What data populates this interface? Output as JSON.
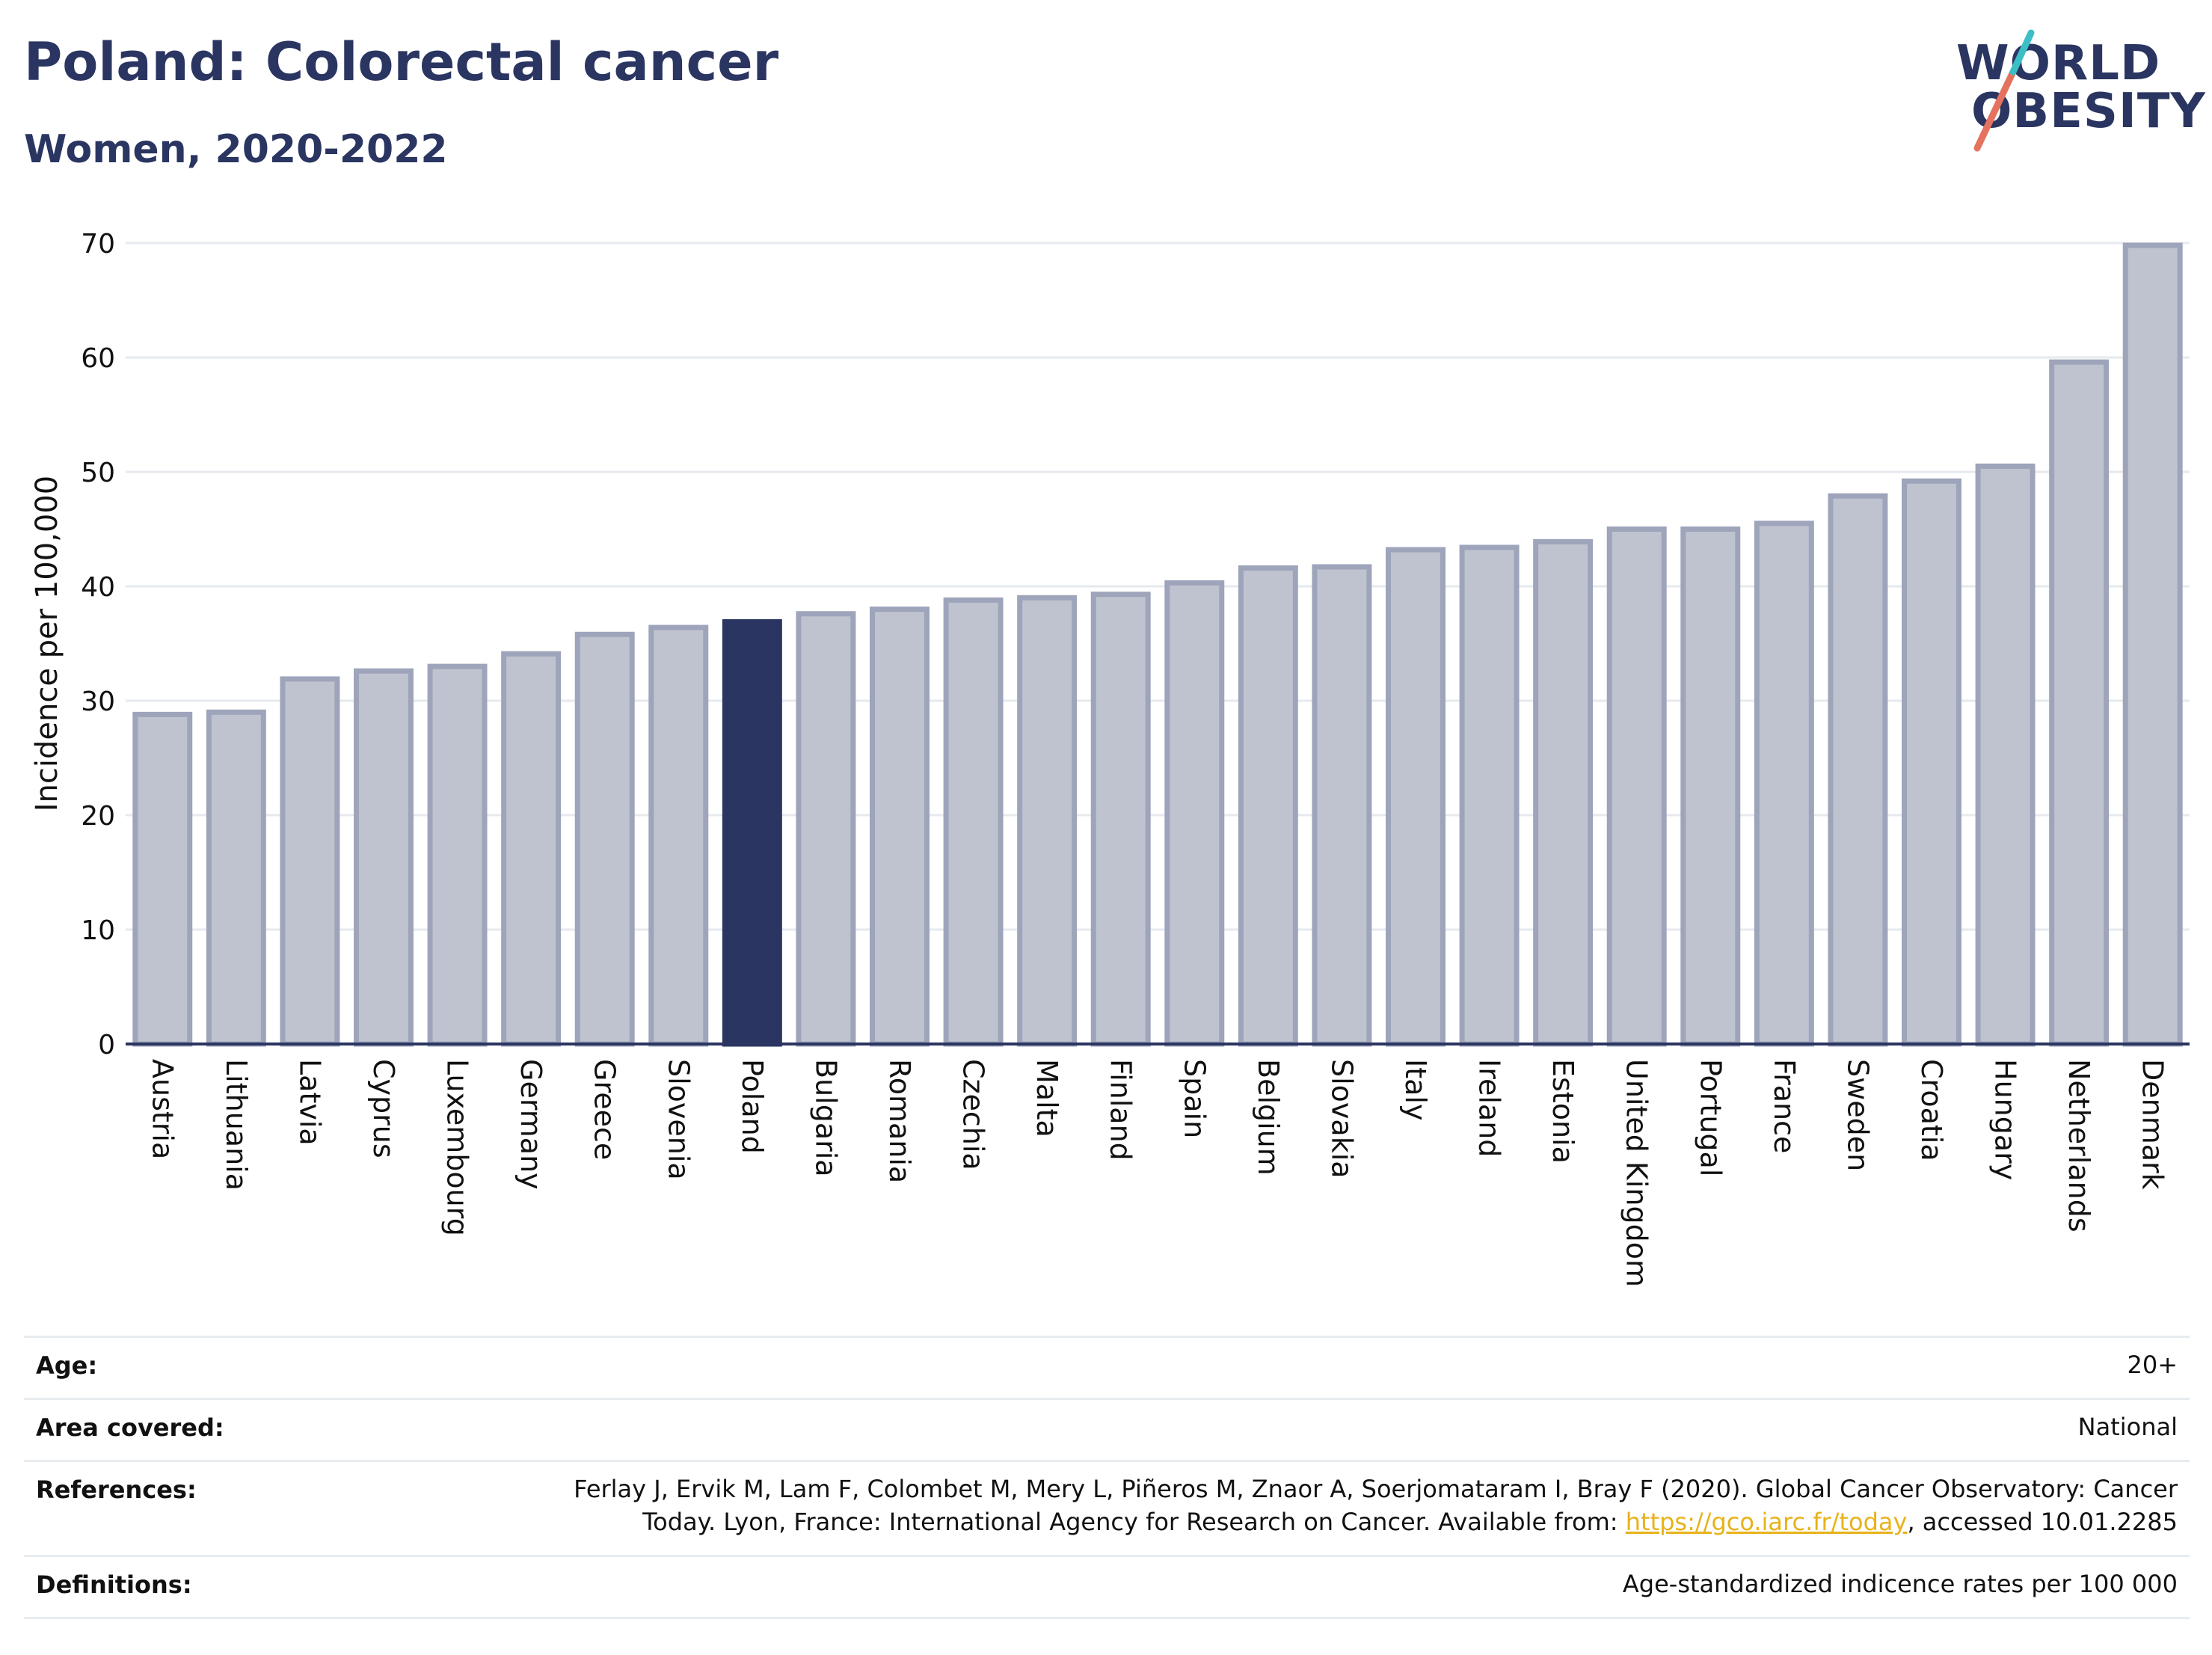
{
  "header": {
    "title": "Poland: Colorectal cancer",
    "subtitle": "Women, 2020-2022"
  },
  "logo": {
    "line1": "WORLD",
    "line2": "OBESITY"
  },
  "chart_data": {
    "type": "bar",
    "ylabel": "Incidence per 100,000",
    "xlabel": "",
    "ylim": [
      0,
      70
    ],
    "yticks": [
      0,
      10,
      20,
      30,
      40,
      50,
      60,
      70
    ],
    "grid": true,
    "highlight": "Poland",
    "colors": {
      "bar": "#bfc3d0",
      "bar_edge": "#9ea4ba",
      "highlight": "#2a3561",
      "axis": "#2a3561",
      "grid": "#e6e9ee"
    },
    "categories": [
      "Austria",
      "Lithuania",
      "Latvia",
      "Cyprus",
      "Luxembourg",
      "Germany",
      "Greece",
      "Slovenia",
      "Poland",
      "Bulgaria",
      "Romania",
      "Czechia",
      "Malta",
      "Finland",
      "Spain",
      "Belgium",
      "Slovakia",
      "Italy",
      "Ireland",
      "Estonia",
      "United Kingdom",
      "Portugal",
      "France",
      "Sweden",
      "Croatia",
      "Hungary",
      "Netherlands",
      "Denmark"
    ],
    "values": [
      28.8,
      29.0,
      31.9,
      32.6,
      33.0,
      34.1,
      35.8,
      36.4,
      36.9,
      37.6,
      38.0,
      38.8,
      39.0,
      39.3,
      40.3,
      41.6,
      41.7,
      43.2,
      43.4,
      43.9,
      45.0,
      45.0,
      45.5,
      47.9,
      49.2,
      50.5,
      59.6,
      69.8
    ]
  },
  "info": {
    "age_label": "Age:",
    "age_value": "20+",
    "area_label": "Area covered:",
    "area_value": "National",
    "references_label": "References:",
    "references_line1": "Ferlay J, Ervik M, Lam F, Colombet M, Mery L, Piñeros M, Znaor A, Soerjomataram I, Bray F (2020). Global Cancer Observatory: Cancer",
    "references_line2_pre": "Today. Lyon, France: International Agency for Research on Cancer. Available from: ",
    "references_link": "https://gco.iarc.fr/today",
    "references_line2_post": ", accessed 10.01.2285",
    "definitions_label": "Definitions:",
    "definitions_value": "Age-standardized indicence rates per 100 000"
  }
}
